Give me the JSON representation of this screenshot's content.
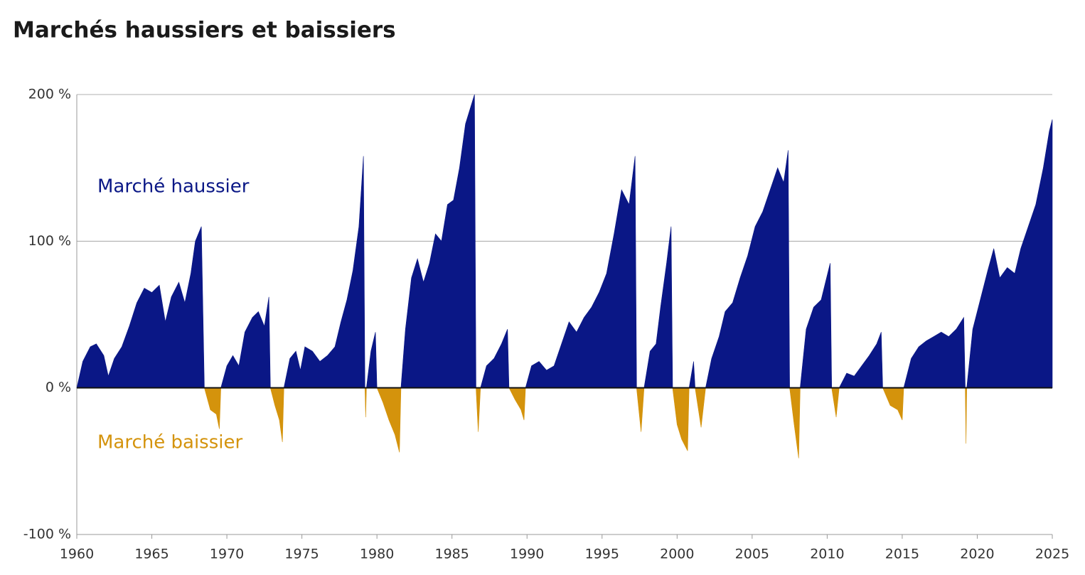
{
  "chart_data": {
    "type": "area",
    "title": "Marchés haussiers et baissiers",
    "x": [
      1960.0,
      1960.4,
      1960.9,
      1961.3,
      1961.8,
      1962.1,
      1962.5,
      1963.0,
      1963.5,
      1964.0,
      1964.5,
      1965.0,
      1965.5,
      1965.9,
      1966.3,
      1966.8,
      1967.2,
      1967.6,
      1967.9,
      1968.3,
      1968.5,
      1968.9,
      1969.3,
      1969.5,
      1969.6,
      1970.0,
      1970.4,
      1970.8,
      1971.2,
      1971.7,
      1972.1,
      1972.5,
      1972.8,
      1972.9,
      1973.2,
      1973.5,
      1973.7,
      1973.8,
      1974.2,
      1974.6,
      1974.9,
      1975.2,
      1975.7,
      1976.2,
      1976.7,
      1977.2,
      1977.6,
      1978.0,
      1978.4,
      1978.8,
      1979.1,
      1979.2,
      1979.25,
      1979.3,
      1979.6,
      1979.9,
      1980.0,
      1980.4,
      1980.8,
      1981.2,
      1981.5,
      1981.6,
      1981.9,
      1982.3,
      1982.7,
      1983.1,
      1983.5,
      1983.9,
      1984.3,
      1984.7,
      1985.1,
      1985.5,
      1985.9,
      1986.5,
      1986.6,
      1986.75,
      1986.9,
      1987.3,
      1987.8,
      1988.3,
      1988.7,
      1988.8,
      1989.2,
      1989.6,
      1989.8,
      1989.9,
      1990.3,
      1990.8,
      1991.3,
      1991.8,
      1992.3,
      1992.8,
      1993.3,
      1993.8,
      1994.3,
      1994.8,
      1995.3,
      1995.8,
      1996.3,
      1996.8,
      1997.2,
      1997.3,
      1997.6,
      1997.8,
      1998.2,
      1998.6,
      1998.9,
      1999.3,
      1999.6,
      1999.7,
      2000.0,
      2000.3,
      2000.7,
      2000.8,
      2001.1,
      2001.2,
      2001.6,
      2001.9,
      2002.3,
      2002.8,
      2003.2,
      2003.7,
      2004.2,
      2004.7,
      2005.2,
      2005.7,
      2006.2,
      2006.7,
      2007.1,
      2007.4,
      2007.5,
      2007.8,
      2008.1,
      2008.2,
      2008.6,
      2009.1,
      2009.6,
      2010.2,
      2010.3,
      2010.6,
      2010.8,
      2011.3,
      2011.8,
      2012.3,
      2012.8,
      2013.3,
      2013.6,
      2013.7,
      2014.2,
      2014.7,
      2015.0,
      2015.1,
      2015.6,
      2016.1,
      2016.6,
      2017.1,
      2017.6,
      2018.1,
      2018.6,
      2019.1,
      2019.2,
      2019.25,
      2019.3,
      2019.7,
      2020.2,
      2020.7,
      2021.1,
      2021.5,
      2022.0,
      2022.5,
      2022.9,
      2023.4,
      2023.9,
      2024.4,
      2024.8,
      2025.0
    ],
    "series": [
      {
        "name": "Marché haussier",
        "color": "#0a1786",
        "values": [
          0,
          18,
          28,
          30,
          22,
          8,
          20,
          28,
          42,
          58,
          68,
          65,
          70,
          45,
          62,
          72,
          58,
          78,
          100,
          110,
          0,
          null,
          null,
          null,
          0,
          15,
          22,
          15,
          38,
          48,
          52,
          42,
          62,
          0,
          null,
          null,
          null,
          0,
          20,
          25,
          12,
          28,
          25,
          18,
          22,
          28,
          45,
          60,
          80,
          110,
          158,
          0,
          null,
          0,
          25,
          38,
          0,
          null,
          null,
          null,
          null,
          0,
          40,
          75,
          88,
          72,
          85,
          105,
          100,
          125,
          128,
          150,
          180,
          200,
          0,
          null,
          0,
          15,
          20,
          30,
          40,
          0,
          null,
          null,
          null,
          0,
          15,
          18,
          12,
          15,
          30,
          45,
          38,
          48,
          55,
          65,
          78,
          105,
          135,
          125,
          158,
          0,
          null,
          0,
          25,
          30,
          55,
          85,
          110,
          0,
          null,
          null,
          null,
          0,
          18,
          0,
          null,
          0,
          20,
          35,
          52,
          58,
          75,
          90,
          110,
          120,
          135,
          150,
          140,
          162,
          0,
          null,
          null,
          0,
          40,
          55,
          60,
          85,
          0,
          null,
          0,
          10,
          8,
          15,
          22,
          30,
          38,
          0,
          null,
          null,
          null,
          0,
          20,
          28,
          32,
          35,
          38,
          35,
          40,
          48,
          0,
          null,
          0,
          40,
          60,
          80,
          95,
          75,
          82,
          78,
          95,
          110,
          125,
          150,
          175,
          183
        ]
      },
      {
        "name": "Marché baissier",
        "color": "#d4930c",
        "values": [
          null,
          null,
          null,
          null,
          null,
          null,
          null,
          null,
          null,
          null,
          null,
          null,
          null,
          null,
          null,
          null,
          null,
          null,
          null,
          null,
          0,
          -15,
          -18,
          -28,
          0,
          null,
          null,
          null,
          null,
          null,
          null,
          null,
          null,
          0,
          -12,
          -22,
          -37,
          0,
          null,
          null,
          null,
          null,
          null,
          null,
          null,
          null,
          null,
          null,
          null,
          null,
          null,
          0,
          -20,
          0,
          null,
          null,
          0,
          -10,
          -22,
          -32,
          -44,
          0,
          null,
          null,
          null,
          null,
          null,
          null,
          null,
          null,
          null,
          null,
          null,
          null,
          0,
          -30,
          0,
          null,
          null,
          null,
          null,
          0,
          -8,
          -15,
          -22,
          0,
          null,
          null,
          null,
          null,
          null,
          null,
          null,
          null,
          null,
          null,
          null,
          null,
          null,
          null,
          null,
          0,
          -30,
          0,
          null,
          null,
          null,
          null,
          null,
          0,
          -25,
          -35,
          -43,
          0,
          null,
          0,
          -27,
          0,
          null,
          null,
          null,
          null,
          null,
          null,
          null,
          null,
          null,
          null,
          null,
          null,
          0,
          -25,
          -48,
          0,
          null,
          null,
          null,
          null,
          0,
          -20,
          0,
          null,
          null,
          null,
          null,
          null,
          null,
          0,
          -12,
          -15,
          -22,
          0,
          null,
          null,
          null,
          null,
          null,
          null,
          null,
          null,
          0,
          -38,
          0,
          null,
          null,
          null,
          null,
          null,
          null,
          null,
          null,
          null,
          null,
          null,
          null,
          null
        ]
      }
    ],
    "xlim": [
      1960,
      2025
    ],
    "xticks": [
      1960,
      1965,
      1970,
      1975,
      1980,
      1985,
      1990,
      1995,
      2000,
      2005,
      2010,
      2015,
      2020,
      2025
    ],
    "ylim": [
      -100,
      200
    ],
    "yticks": [
      {
        "value": -100,
        "label": "-100 %"
      },
      {
        "value": 0,
        "label": "0 %"
      },
      {
        "value": 100,
        "label": "100 %"
      },
      {
        "value": 200,
        "label": "200 %"
      }
    ],
    "grid": true
  }
}
